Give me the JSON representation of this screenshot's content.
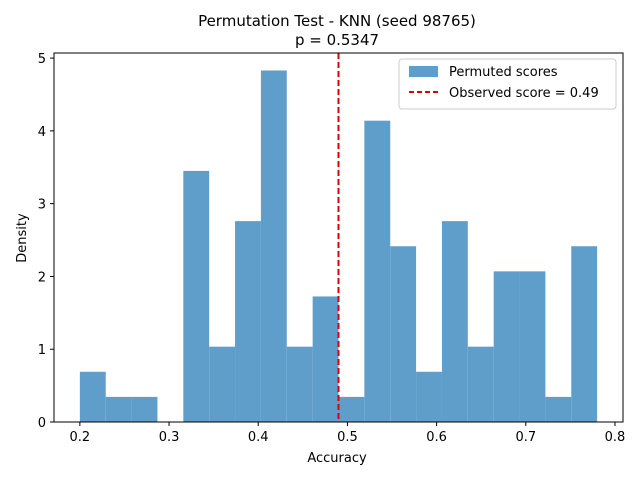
{
  "chart_data": {
    "type": "bar",
    "title": "Permutation Test - KNN (seed 98765)",
    "subtitle": "p = 0.5347",
    "xlabel": "Accuracy",
    "ylabel": "Density",
    "xlim": [
      0.171,
      0.809
    ],
    "ylim": [
      0,
      5.07
    ],
    "xticks": [
      0.2,
      0.3,
      0.4,
      0.5,
      0.6,
      0.7,
      0.8
    ],
    "xtick_labels": [
      "0.2",
      "0.3",
      "0.4",
      "0.5",
      "0.6",
      "0.7",
      "0.8"
    ],
    "yticks": [
      0,
      1,
      2,
      3,
      4,
      5
    ],
    "ytick_labels": [
      "0",
      "1",
      "2",
      "3",
      "4",
      "5"
    ],
    "grid": false,
    "legend_position": "top-right",
    "series": [
      {
        "name": "Permuted scores",
        "color": "#5f9ecb",
        "bin_edges": [
          0.2,
          0.229,
          0.258,
          0.287,
          0.316,
          0.345,
          0.374,
          0.403,
          0.432,
          0.461,
          0.49,
          0.519,
          0.548,
          0.577,
          0.606,
          0.635,
          0.664,
          0.693,
          0.722,
          0.751,
          0.78
        ],
        "values": [
          0.69,
          0.345,
          0.345,
          0.0,
          3.45,
          1.035,
          2.76,
          4.83,
          1.035,
          1.725,
          0.345,
          4.14,
          2.415,
          0.69,
          2.76,
          1.035,
          2.07,
          2.07,
          0.345,
          2.415
        ]
      }
    ],
    "reference_line": {
      "name": "Observed score = 0.49",
      "x": 0.49,
      "color": "#dd0000",
      "style": "dashed"
    }
  }
}
